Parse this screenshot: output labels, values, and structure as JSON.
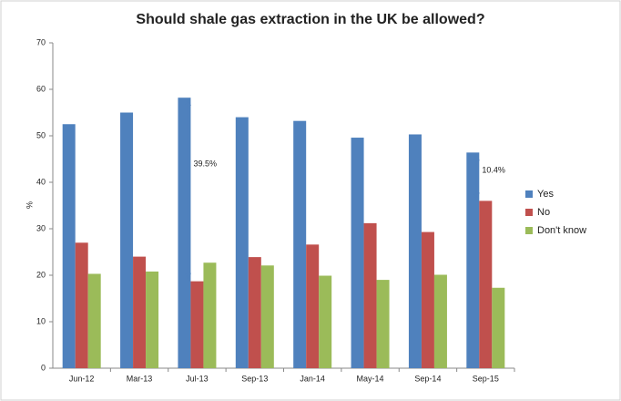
{
  "chart_data": {
    "type": "bar",
    "title": "Should shale gas extraction in the UK be allowed?",
    "y_label": "%",
    "categories": [
      "Jun-12",
      "Mar-13",
      "Jul-13",
      "Sep-13",
      "Jan-14",
      "May-14",
      "Sep-14",
      "Sep-15"
    ],
    "series": [
      {
        "name": "Yes",
        "color": "#4f81bd",
        "values": [
          52.5,
          55,
          58.2,
          54,
          53.2,
          49.6,
          50.3,
          46.4
        ]
      },
      {
        "name": "No",
        "color": "#c0504d",
        "values": [
          27,
          24,
          18.7,
          23.9,
          26.6,
          31.2,
          29.3,
          36
        ]
      },
      {
        "name": "Don't know",
        "color": "#9bbb59",
        "values": [
          20.3,
          20.8,
          22.7,
          22.1,
          19.9,
          19,
          20.1,
          17.3
        ]
      }
    ],
    "annotations": [
      {
        "text": "39.5%",
        "category": "Jul-13"
      },
      {
        "text": "10.4%",
        "category": "Sep-15"
      }
    ],
    "ylim": [
      0,
      70
    ],
    "yticks": [
      0,
      10,
      20,
      30,
      40,
      50,
      60,
      70
    ],
    "grid": false,
    "legend": "right"
  }
}
